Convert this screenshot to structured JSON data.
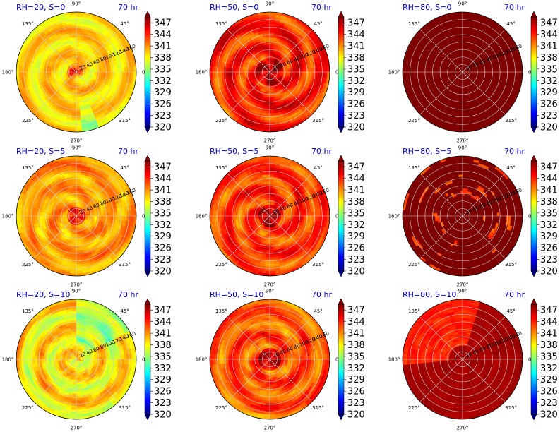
{
  "colormap": {
    "name": "jet",
    "stops": [
      "#00007f",
      "#0000ff",
      "#007fff",
      "#00ffff",
      "#7fff7f",
      "#ffff00",
      "#ff7f00",
      "#ff0000",
      "#7f0000"
    ]
  },
  "chart_data": {
    "type": "polar-filled-contour",
    "common": {
      "time_label": "70 hr",
      "angle_ticks": [
        "0°",
        "45°",
        "90°",
        "135°",
        "180°",
        "225°",
        "270°",
        "315°"
      ],
      "radius_ticks": [
        "20",
        "40",
        "60",
        "80",
        "100",
        "120",
        "140",
        "160"
      ],
      "colorbar_ticks": [
        "320",
        "323",
        "326",
        "329",
        "332",
        "335",
        "338",
        "341",
        "344",
        "347"
      ],
      "colorbar_range": [
        320,
        348.5
      ]
    },
    "panels": [
      {
        "title": "RH=20, S=0",
        "field_type": "rh20_s0",
        "mean": 339.5
      },
      {
        "title": "RH=50, S=0",
        "field_type": "rh50_s0",
        "mean": 344.0
      },
      {
        "title": "RH=80, S=0",
        "field_type": "rh80_s0",
        "mean": 348.0
      },
      {
        "title": "RH=20, S=5",
        "field_type": "rh20_s5",
        "mean": 340.5
      },
      {
        "title": "RH=50, S=5",
        "field_type": "rh50_s5",
        "mean": 343.5
      },
      {
        "title": "RH=80, S=5",
        "field_type": "rh80_s5",
        "mean": 347.5
      },
      {
        "title": "RH=20, S=10",
        "field_type": "rh20_s10",
        "mean": 338.5
      },
      {
        "title": "RH=50, S=10",
        "field_type": "rh50_s10",
        "mean": 342.5
      },
      {
        "title": "RH=80, S=10",
        "field_type": "rh80_s10",
        "mean": 346.0
      }
    ]
  }
}
